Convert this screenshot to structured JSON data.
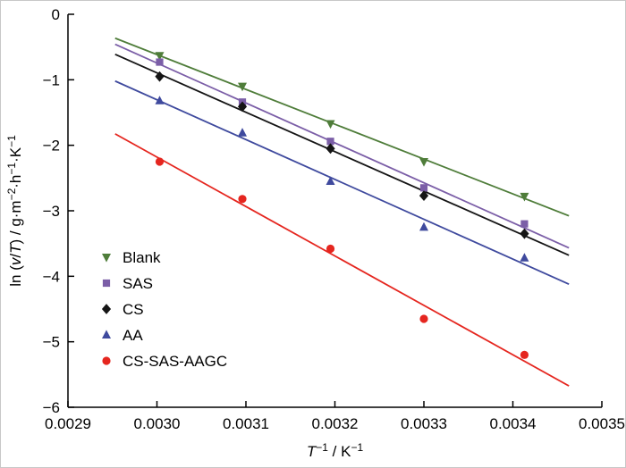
{
  "chart_data": {
    "type": "scatter",
    "title": "",
    "xlabel_parts": [
      {
        "t": "T",
        "i": true
      },
      {
        "t": "−1",
        "sup": true
      },
      {
        "t": " / K"
      },
      {
        "t": "−1",
        "sup": true
      }
    ],
    "ylabel_parts": [
      {
        "t": "ln ("
      },
      {
        "t": "v",
        "i": true
      },
      {
        "t": "/"
      },
      {
        "t": "T",
        "i": true
      },
      {
        "t": ") / g·m"
      },
      {
        "t": "−2",
        "sup": true
      },
      {
        "t": "·h"
      },
      {
        "t": "−1",
        "sup": true
      },
      {
        "t": "·K"
      },
      {
        "t": "−1",
        "sup": true
      }
    ],
    "xlim": [
      0.0029,
      0.0035
    ],
    "ylim": [
      -6,
      0
    ],
    "xticks": [
      0.0029,
      0.003,
      0.0031,
      0.0032,
      0.0033,
      0.0034,
      0.0035
    ],
    "xtick_labels": [
      "0.0029",
      "0.0030",
      "0.0031",
      "0.0032",
      "0.0033",
      "0.0034",
      "0.0035"
    ],
    "yticks": [
      0,
      -1,
      -2,
      -3,
      -4,
      -5,
      -6
    ],
    "ytick_labels": [
      "0",
      "−1",
      "−2",
      "−3",
      "−4",
      "−5",
      "−6"
    ],
    "grid": false,
    "legend_position": "inside-lower-left",
    "fit_lines": true,
    "x": [
      0.003003,
      0.003096,
      0.003195,
      0.0033,
      0.003413
    ],
    "series": [
      {
        "name": "Blank",
        "marker": "triangle-down",
        "color": "#4f7d3a",
        "values": [
          -0.63,
          -1.1,
          -1.67,
          -2.25,
          -2.78
        ]
      },
      {
        "name": "SAS",
        "marker": "square",
        "color": "#7b5ea7",
        "values": [
          -0.73,
          -1.34,
          -1.94,
          -2.65,
          -3.2
        ]
      },
      {
        "name": "CS",
        "marker": "diamond",
        "color": "#151515",
        "values": [
          -0.95,
          -1.41,
          -2.05,
          -2.77,
          -3.35
        ]
      },
      {
        "name": "AA",
        "marker": "triangle-up",
        "color": "#3f4a9e",
        "values": [
          -1.32,
          -1.81,
          -2.55,
          -3.25,
          -3.72
        ]
      },
      {
        "name": "CS-SAS-AAGC",
        "marker": "circle",
        "color": "#e5261f",
        "values": [
          -2.25,
          -2.82,
          -3.58,
          -4.65,
          -5.2
        ]
      }
    ]
  }
}
